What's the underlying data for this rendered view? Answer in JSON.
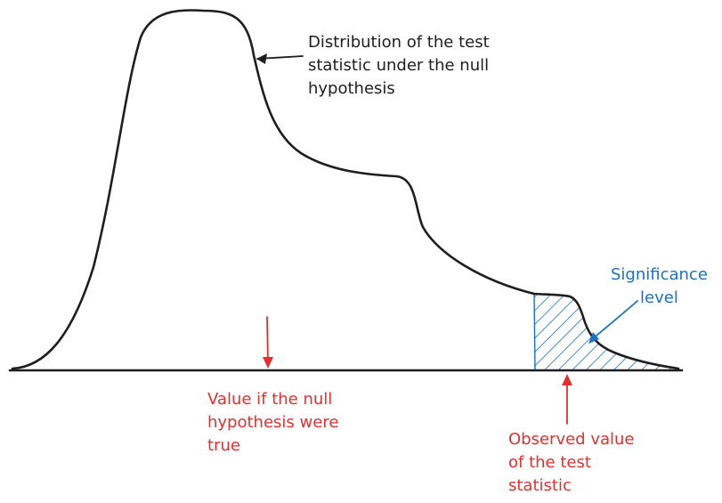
{
  "colors": {
    "ink": "#1e1e1e",
    "red": "#e03131",
    "blue": "#1971c2"
  },
  "annotations": {
    "null_distribution": {
      "lines": [
        "Distribution of the test",
        "statistic under the null",
        "hypothesis"
      ]
    },
    "significance_level": {
      "lines": [
        "Significance",
        "level"
      ]
    },
    "null_true_value": {
      "lines": [
        "Value if the null",
        "hypothesis were",
        "true"
      ]
    },
    "observed_value": {
      "lines": [
        "Observed value",
        "of the test",
        "statistic"
      ]
    }
  }
}
